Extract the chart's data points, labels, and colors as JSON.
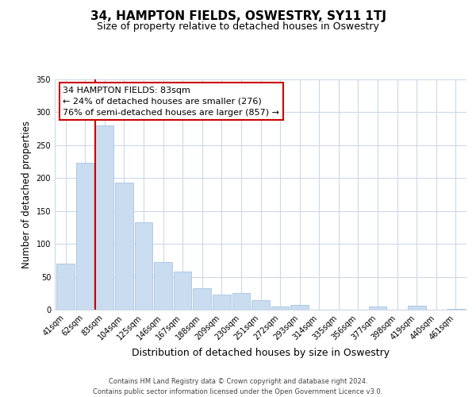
{
  "title": "34, HAMPTON FIELDS, OSWESTRY, SY11 1TJ",
  "subtitle": "Size of property relative to detached houses in Oswestry",
  "xlabel": "Distribution of detached houses by size in Oswestry",
  "ylabel": "Number of detached properties",
  "bar_labels": [
    "41sqm",
    "62sqm",
    "83sqm",
    "104sqm",
    "125sqm",
    "146sqm",
    "167sqm",
    "188sqm",
    "209sqm",
    "230sqm",
    "251sqm",
    "272sqm",
    "293sqm",
    "314sqm",
    "335sqm",
    "356sqm",
    "377sqm",
    "398sqm",
    "419sqm",
    "440sqm",
    "461sqm"
  ],
  "bar_values": [
    70,
    223,
    280,
    193,
    133,
    72,
    58,
    33,
    23,
    25,
    15,
    5,
    7,
    0,
    0,
    0,
    5,
    0,
    6,
    0,
    1
  ],
  "bar_color": "#c9dcf0",
  "bar_edge_color": "#a8c4e0",
  "vline_color": "#cc0000",
  "vline_x_index": 2,
  "annotation_title": "34 HAMPTON FIELDS: 83sqm",
  "annotation_line1": "← 24% of detached houses are smaller (276)",
  "annotation_line2": "76% of semi-detached houses are larger (857) →",
  "annotation_box_color": "#ffffff",
  "annotation_box_edge": "#cc0000",
  "ylim": [
    0,
    350
  ],
  "yticks": [
    0,
    50,
    100,
    150,
    200,
    250,
    300,
    350
  ],
  "footer_line1": "Contains HM Land Registry data © Crown copyright and database right 2024.",
  "footer_line2": "Contains public sector information licensed under the Open Government Licence v3.0.",
  "bg_color": "#ffffff",
  "grid_color": "#ccd9e8",
  "title_fontsize": 11,
  "subtitle_fontsize": 9,
  "tick_fontsize": 7,
  "ylabel_fontsize": 8.5,
  "xlabel_fontsize": 9,
  "footer_fontsize": 6,
  "annotation_fontsize": 8
}
